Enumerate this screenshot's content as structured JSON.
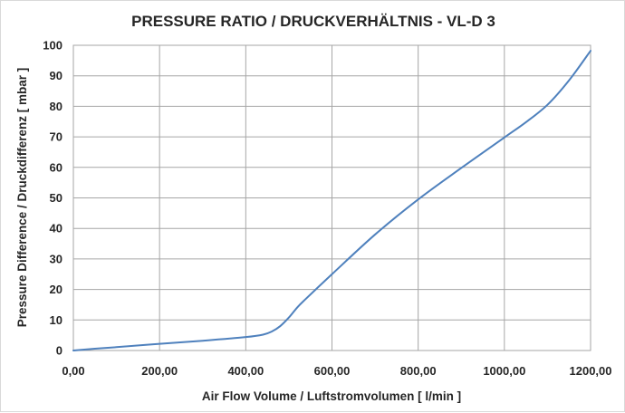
{
  "chart_data": {
    "type": "line",
    "title": "PRESSURE RATIO / DRUCKVERHÄLTNIS - VL-D 3",
    "xlabel": "Air Flow Volume / Luftstromvolumen [ l/min ]",
    "ylabel": "Pressure Difference / Druckdifferenz [ mbar ]",
    "xlim": [
      0,
      1200
    ],
    "ylim": [
      0,
      100
    ],
    "x_ticks": [
      "0,00",
      "200,00",
      "400,00",
      "600,00",
      "800,00",
      "1000,00",
      "1200,00"
    ],
    "y_ticks": [
      "0",
      "10",
      "20",
      "30",
      "40",
      "50",
      "60",
      "70",
      "80",
      "90",
      "100"
    ],
    "grid": true,
    "legend": "none",
    "series": [
      {
        "color": "#4f81bd",
        "x": [
          0,
          50,
          100,
          200,
          300,
          400,
          440,
          460,
          480,
          500,
          520,
          540,
          600,
          700,
          800,
          900,
          1000,
          1050,
          1100,
          1150,
          1200
        ],
        "y": [
          0,
          0.6,
          1.1,
          2.2,
          3.2,
          4.4,
          5.2,
          6.2,
          8.0,
          10.8,
          14.2,
          17.0,
          25.0,
          38.0,
          49.5,
          59.8,
          69.8,
          74.8,
          80.5,
          88.5,
          98.2
        ]
      }
    ]
  }
}
